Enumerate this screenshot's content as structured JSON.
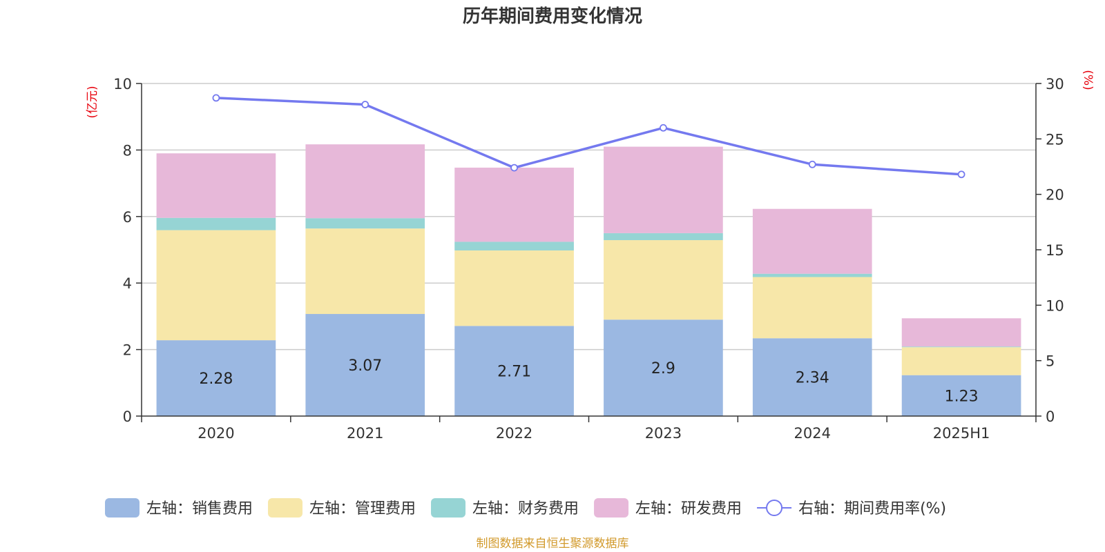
{
  "chart_data": {
    "type": "bar",
    "title": "历年期间费用变化情况",
    "categories": [
      "2020",
      "2021",
      "2022",
      "2023",
      "2024",
      "2025H1"
    ],
    "y_left": {
      "unit": "(亿元)",
      "ylim": [
        0,
        10
      ],
      "ticks": [
        0,
        2,
        4,
        6,
        8,
        10
      ]
    },
    "y_right": {
      "unit": "(%)",
      "ylim": [
        0,
        30
      ],
      "ticks": [
        0,
        5,
        10,
        15,
        20,
        25,
        30
      ]
    },
    "stacked_series": [
      {
        "name": "左轴：销售费用",
        "color": "#9bb8e2",
        "values": [
          2.28,
          3.07,
          2.71,
          2.9,
          2.34,
          1.23
        ],
        "labels": [
          "2.28",
          "3.07",
          "2.71",
          "2.9",
          "2.34",
          "1.23"
        ]
      },
      {
        "name": "左轴：管理费用",
        "color": "#f7e7a9",
        "values": [
          3.31,
          2.57,
          2.27,
          2.39,
          1.84,
          0.84
        ]
      },
      {
        "name": "左轴：财务费用",
        "color": "#96d4d4",
        "values": [
          0.37,
          0.31,
          0.26,
          0.21,
          0.1,
          0.02
        ]
      },
      {
        "name": "左轴：研发费用",
        "color": "#e7b8d9",
        "values": [
          1.94,
          2.22,
          2.23,
          2.6,
          1.95,
          0.85
        ]
      }
    ],
    "line_series": {
      "name": "右轴：期间费用率(%)",
      "color": "#7479ef",
      "values": [
        28.7,
        28.1,
        22.4,
        26.0,
        22.7,
        21.8
      ]
    },
    "grid": true,
    "legend_position": "bottom"
  },
  "source": "制图数据来自恒生聚源数据库"
}
